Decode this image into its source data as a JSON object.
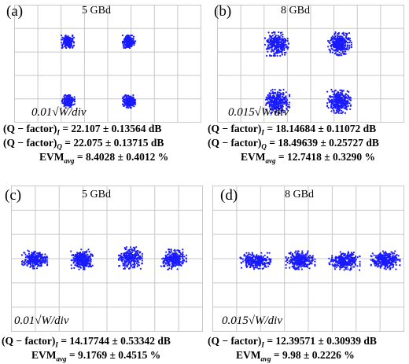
{
  "panels": {
    "a": {
      "label": "(a)",
      "rate": "5 GBd",
      "scale": "0.01√W/div",
      "metrics": [
        "(Q − factor)I = 22.107 ± 0.13564 dB",
        "(Q − factor)Q = 22.075 ± 0.13715 dB",
        "EVMavg = 8.4028 ± 0.4012 %"
      ],
      "constellation": "4-level 2D (QPSK-like)",
      "dot_color": "#1a1aff"
    },
    "b": {
      "label": "(b)",
      "rate": "8 GBd",
      "scale": "0.015√W/div",
      "metrics": [
        "(Q − factor)I = 18.14684 ± 0.11072 dB",
        "(Q − factor)Q = 18.49639 ± 0.25727 dB",
        "EVMavg = 12.7418 ± 0.3290 %"
      ],
      "constellation": "4-level 2D (QPSK-like)",
      "dot_color": "#1a1aff"
    },
    "c": {
      "label": "(c)",
      "rate": "5 GBd",
      "scale": "0.01√W/div",
      "metrics": [
        "(Q − factor)I = 14.17744 ± 0.53342 dB",
        "EVMavg = 9.1769 ± 0.4515 %"
      ],
      "constellation": "4-level 1D (PAM4-like)",
      "dot_color": "#1a1aff"
    },
    "d": {
      "label": "(d)",
      "rate": "8 GBd",
      "scale": "0.015√W/div",
      "metrics": [
        "(Q − factor)I = 12.39571 ± 0.30939 dB",
        "EVMavg = 9.98 ± 0.2226 %"
      ],
      "constellation": "4-level 1D (PAM4-like)",
      "dot_color": "#1a1aff"
    }
  },
  "text": {
    "a_label": "(a)",
    "a_rate": "5 GBd",
    "a_scale": "0.01√W/div",
    "b_label": "(b)",
    "b_rate": "8 GBd",
    "b_scale": "0.015√W/div",
    "c_label": "(c)",
    "c_rate": "5 GBd",
    "c_scale": "0.01√W/div",
    "d_label": "(d)",
    "d_rate": "8 GBd",
    "d_scale": "0.015√W/div",
    "a_q_i": "= 22.107 ± 0.13564 dB",
    "a_q_q": "= 22.075 ± 0.13715 dB",
    "a_evm": "= 8.4028 ± 0.4012 %",
    "b_q_i": "= 18.14684 ± 0.11072 dB",
    "b_q_q": "= 18.49639 ± 0.25727 dB",
    "b_evm": "= 12.7418 ± 0.3290 %",
    "c_q_i": "= 14.17744 ± 0.53342 dB",
    "c_evm": "= 9.1769 ± 0.4515 %",
    "d_q_i": "= 12.39571 ± 0.30939 dB",
    "d_evm": "= 9.98 ± 0.2226 %",
    "q_prefix": "(Q − factor)",
    "evm_prefix": "EVM",
    "sub_i": "I",
    "sub_q": "Q",
    "sub_avg": "avg"
  }
}
